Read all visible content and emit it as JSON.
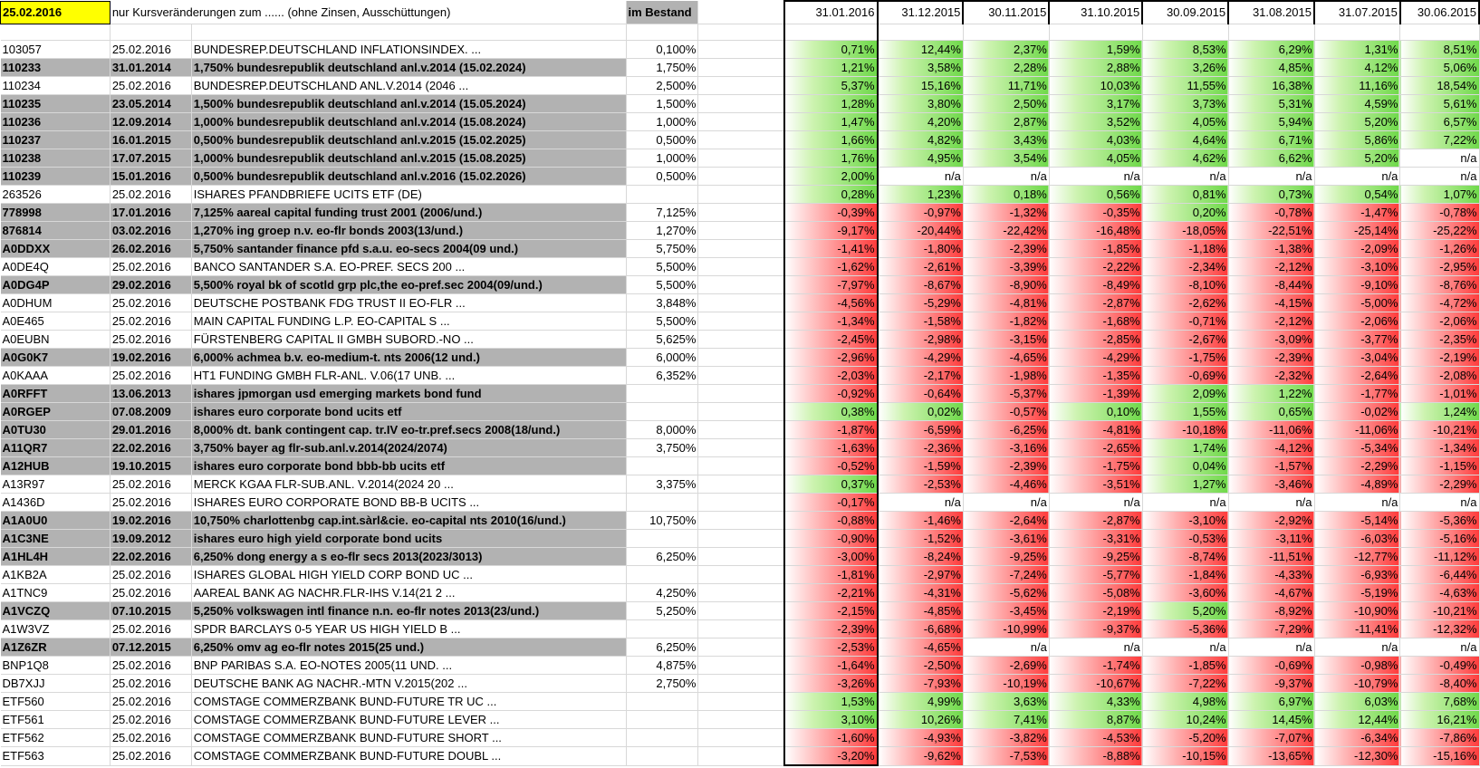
{
  "header": {
    "date": "25.02.2016",
    "note": "nur Kursveränderungen zum ......   (ohne Zinsen, Ausschüttungen)",
    "in_stock": "im Bestand",
    "periods": [
      "31.01.2016",
      "31.12.2015",
      "30.11.2015",
      "31.10.2015",
      "30.09.2015",
      "31.08.2015",
      "31.07.2015",
      "30.06.2015"
    ]
  },
  "colors": {
    "gray_row": "#b2b2b2",
    "positive": "#6fd94a",
    "negative": "#ff3b3b",
    "highlight": "#ffff00"
  },
  "rows": [
    {
      "wkn": "103057",
      "date": "25.02.2016",
      "name": "BUNDESREP.DEUTSCHLAND INFLATIONSINDEX. ...",
      "coupon": "0,100%",
      "style": "plain",
      "vals": [
        "0,71%",
        "12,44%",
        "2,37%",
        "1,59%",
        "8,53%",
        "6,29%",
        "1,31%",
        "8,51%"
      ]
    },
    {
      "wkn": "110233",
      "date": "31.01.2014",
      "name": "1,750% bundesrepublik deutschland anl.v.2014 (15.02.2024)",
      "coupon": "1,750%",
      "style": "bold",
      "vals": [
        "1,21%",
        "3,58%",
        "2,28%",
        "2,88%",
        "3,26%",
        "4,85%",
        "4,12%",
        "5,06%"
      ]
    },
    {
      "wkn": "110234",
      "date": "25.02.2016",
      "name": "BUNDESREP.DEUTSCHLAND ANL.V.2014 (2046 ...",
      "coupon": "2,500%",
      "style": "plain",
      "vals": [
        "5,37%",
        "15,16%",
        "11,71%",
        "10,03%",
        "11,55%",
        "16,38%",
        "11,16%",
        "18,54%"
      ]
    },
    {
      "wkn": "110235",
      "date": "23.05.2014",
      "name": "1,500% bundesrepublik deutschland anl.v.2014 (15.05.2024)",
      "coupon": "1,500%",
      "style": "bold",
      "vals": [
        "1,28%",
        "3,80%",
        "2,50%",
        "3,17%",
        "3,73%",
        "5,31%",
        "4,59%",
        "5,61%"
      ]
    },
    {
      "wkn": "110236",
      "date": "12.09.2014",
      "name": "1,000% bundesrepublik deutschland anl.v.2014 (15.08.2024)",
      "coupon": "1,000%",
      "style": "bold",
      "vals": [
        "1,47%",
        "4,20%",
        "2,87%",
        "3,52%",
        "4,05%",
        "5,94%",
        "5,20%",
        "6,57%"
      ]
    },
    {
      "wkn": "110237",
      "date": "16.01.2015",
      "name": "0,500% bundesrepublik deutschland anl.v.2015 (15.02.2025)",
      "coupon": "0,500%",
      "style": "bold",
      "vals": [
        "1,66%",
        "4,82%",
        "3,43%",
        "4,03%",
        "4,64%",
        "6,71%",
        "5,86%",
        "7,22%"
      ]
    },
    {
      "wkn": "110238",
      "date": "17.07.2015",
      "name": "1,000% bundesrepublik deutschland anl.v.2015 (15.08.2025)",
      "coupon": "1,000%",
      "style": "bold",
      "vals": [
        "1,76%",
        "4,95%",
        "3,54%",
        "4,05%",
        "4,62%",
        "6,62%",
        "5,20%",
        "n/a"
      ]
    },
    {
      "wkn": "110239",
      "date": "15.01.2016",
      "name": "0,500% bundesrepublik deutschland anl.v.2016 (15.02.2026)",
      "coupon": "0,500%",
      "style": "bold",
      "vals": [
        "2,00%",
        "n/a",
        "n/a",
        "n/a",
        "n/a",
        "n/a",
        "n/a",
        "n/a"
      ]
    },
    {
      "wkn": "263526",
      "date": "25.02.2016",
      "name": "ISHARES PFANDBRIEFE UCITS ETF (DE)",
      "coupon": "",
      "style": "plain",
      "vals": [
        "0,28%",
        "1,23%",
        "0,18%",
        "0,56%",
        "0,81%",
        "0,73%",
        "0,54%",
        "1,07%"
      ]
    },
    {
      "wkn": "778998",
      "date": "17.01.2016",
      "name": "7,125% aareal capital funding trust 2001 (2006/und.)",
      "coupon": "7,125%",
      "style": "bold",
      "vals": [
        "-0,39%",
        "-0,97%",
        "-1,32%",
        "-0,35%",
        "0,20%",
        "-0,78%",
        "-1,47%",
        "-0,78%"
      ]
    },
    {
      "wkn": "876814",
      "date": "03.02.2016",
      "name": "1,270% ing groep n.v. eo-flr bonds 2003(13/und.)",
      "coupon": "1,270%",
      "style": "bold",
      "vals": [
        "-9,17%",
        "-20,44%",
        "-22,42%",
        "-16,48%",
        "-18,05%",
        "-22,51%",
        "-25,14%",
        "-25,22%"
      ]
    },
    {
      "wkn": "A0DDXX",
      "date": "26.02.2016",
      "name": "5,750% santander finance pfd s.a.u. eo-secs 2004(09 und.)",
      "coupon": "5,750%",
      "style": "bold",
      "vals": [
        "-1,41%",
        "-1,80%",
        "-2,39%",
        "-1,85%",
        "-1,18%",
        "-1,38%",
        "-2,09%",
        "-1,26%"
      ]
    },
    {
      "wkn": "A0DE4Q",
      "date": "25.02.2016",
      "name": "BANCO SANTANDER S.A. EO-PREF. SECS 200 ...",
      "coupon": "5,500%",
      "style": "plain",
      "vals": [
        "-1,62%",
        "-2,61%",
        "-3,39%",
        "-2,22%",
        "-2,34%",
        "-2,12%",
        "-3,10%",
        "-2,95%"
      ]
    },
    {
      "wkn": "A0DG4P",
      "date": "29.02.2016",
      "name": "5,500% royal bk of scotld grp plc,the eo-pref.sec 2004(09/und.)",
      "coupon": "5,500%",
      "style": "bold",
      "vals": [
        "-7,97%",
        "-8,67%",
        "-8,90%",
        "-8,49%",
        "-8,10%",
        "-8,44%",
        "-9,10%",
        "-8,76%"
      ]
    },
    {
      "wkn": "A0DHUM",
      "date": "25.02.2016",
      "name": "DEUTSCHE POSTBANK FDG TRUST II EO-FLR ...",
      "coupon": "3,848%",
      "style": "plain",
      "vals": [
        "-4,56%",
        "-5,29%",
        "-4,81%",
        "-2,87%",
        "-2,62%",
        "-4,15%",
        "-5,00%",
        "-4,72%"
      ]
    },
    {
      "wkn": "A0E465",
      "date": "25.02.2016",
      "name": "MAIN CAPITAL FUNDING L.P. EO-CAPITAL S ...",
      "coupon": "5,500%",
      "style": "plain",
      "vals": [
        "-1,34%",
        "-1,58%",
        "-1,82%",
        "-1,68%",
        "-0,71%",
        "-2,12%",
        "-2,06%",
        "-2,06%"
      ]
    },
    {
      "wkn": "A0EUBN",
      "date": "25.02.2016",
      "name": "FÜRSTENBERG CAPITAL II GMBH SUBORD.-NO ...",
      "coupon": "5,625%",
      "style": "plain",
      "vals": [
        "-2,45%",
        "-2,98%",
        "-3,15%",
        "-2,85%",
        "-2,67%",
        "-3,09%",
        "-3,77%",
        "-2,35%"
      ]
    },
    {
      "wkn": "A0G0K7",
      "date": "19.02.2016",
      "name": "6,000% achmea b.v. eo-medium-t. nts 2006(12 und.)",
      "coupon": "6,000%",
      "style": "bold",
      "vals": [
        "-2,96%",
        "-4,29%",
        "-4,65%",
        "-4,29%",
        "-1,75%",
        "-2,39%",
        "-3,04%",
        "-2,19%"
      ]
    },
    {
      "wkn": "A0KAAA",
      "date": "25.02.2016",
      "name": "HT1 FUNDING GMBH FLR-ANL. V.06(17 UNB. ...",
      "coupon": "6,352%",
      "style": "plain",
      "vals": [
        "-2,03%",
        "-2,17%",
        "-1,98%",
        "-1,35%",
        "-0,69%",
        "-2,32%",
        "-2,64%",
        "-2,08%"
      ]
    },
    {
      "wkn": "A0RFFT",
      "date": "13.06.2013",
      "name": "ishares jpmorgan usd emerging markets bond fund",
      "coupon": "",
      "style": "bold",
      "vals": [
        "-0,92%",
        "-0,64%",
        "-5,37%",
        "-1,39%",
        "2,09%",
        "1,22%",
        "-1,77%",
        "-1,01%"
      ]
    },
    {
      "wkn": "A0RGEP",
      "date": "07.08.2009",
      "name": "ishares euro corporate bond ucits etf",
      "coupon": "",
      "style": "bold",
      "vals": [
        "0,38%",
        "0,02%",
        "-0,57%",
        "0,10%",
        "1,55%",
        "0,65%",
        "-0,02%",
        "1,24%"
      ]
    },
    {
      "wkn": "A0TU30",
      "date": "29.01.2016",
      "name": "8,000% dt. bank contingent cap. tr.IV eo-tr.pref.secs 2008(18/und.)",
      "coupon": "8,000%",
      "style": "bold",
      "vals": [
        "-1,87%",
        "-6,59%",
        "-6,25%",
        "-4,81%",
        "-10,18%",
        "-11,06%",
        "-11,06%",
        "-10,21%"
      ]
    },
    {
      "wkn": "A11QR7",
      "date": "22.02.2016",
      "name": "3,750% bayer ag flr-sub.anl.v.2014(2024/2074)",
      "coupon": "3,750%",
      "style": "bold",
      "vals": [
        "-1,63%",
        "-2,36%",
        "-3,16%",
        "-2,65%",
        "1,74%",
        "-4,12%",
        "-5,34%",
        "-1,34%"
      ]
    },
    {
      "wkn": "A12HUB",
      "date": "19.10.2015",
      "name": "ishares euro corporate bond bbb-bb ucits etf",
      "coupon": "",
      "style": "bold",
      "vals": [
        "-0,52%",
        "-1,59%",
        "-2,39%",
        "-1,75%",
        "0,04%",
        "-1,57%",
        "-2,29%",
        "-1,15%"
      ]
    },
    {
      "wkn": "A13R97",
      "date": "25.02.2016",
      "name": "MERCK KGAA FLR-SUB.ANL. V.2014(2024 20 ...",
      "coupon": "3,375%",
      "style": "plain",
      "vals": [
        "0,37%",
        "-2,53%",
        "-4,46%",
        "-3,51%",
        "1,27%",
        "-3,46%",
        "-4,89%",
        "-2,29%"
      ]
    },
    {
      "wkn": "A1436D",
      "date": "25.02.2016",
      "name": "ISHARES EURO CORPORATE BOND BB-B UCITS ...",
      "coupon": "",
      "style": "plain",
      "vals": [
        "-0,17%",
        "n/a",
        "n/a",
        "n/a",
        "n/a",
        "n/a",
        "n/a",
        "n/a"
      ]
    },
    {
      "wkn": "A1A0U0",
      "date": "19.02.2016",
      "name": "10,750% charlottenbg cap.int.sàrl&cie. eo-capital nts 2010(16/und.)",
      "coupon": "10,750%",
      "style": "bold",
      "vals": [
        "-0,88%",
        "-1,46%",
        "-2,64%",
        "-2,87%",
        "-3,10%",
        "-2,92%",
        "-5,14%",
        "-5,36%"
      ]
    },
    {
      "wkn": "A1C3NE",
      "date": "19.09.2012",
      "name": "ishares euro high yield corporate bond ucits",
      "coupon": "",
      "style": "bold",
      "vals": [
        "-0,90%",
        "-1,52%",
        "-3,61%",
        "-3,31%",
        "-0,53%",
        "-3,11%",
        "-6,03%",
        "-5,16%"
      ]
    },
    {
      "wkn": "A1HL4H",
      "date": "22.02.2016",
      "name": "6,250% dong energy a s eo-flr secs 2013(2023/3013)",
      "coupon": "6,250%",
      "style": "bold",
      "vals": [
        "-3,00%",
        "-8,24%",
        "-9,25%",
        "-9,25%",
        "-8,74%",
        "-11,51%",
        "-12,77%",
        "-11,12%"
      ]
    },
    {
      "wkn": "A1KB2A",
      "date": "25.02.2016",
      "name": "ISHARES GLOBAL HIGH YIELD CORP BOND UC ...",
      "coupon": "",
      "style": "plain",
      "vals": [
        "-1,81%",
        "-2,97%",
        "-7,24%",
        "-5,77%",
        "-1,84%",
        "-4,33%",
        "-6,93%",
        "-6,44%"
      ]
    },
    {
      "wkn": "A1TNC9",
      "date": "25.02.2016",
      "name": "AAREAL BANK AG NACHR.FLR-IHS V.14(21 2 ...",
      "coupon": "4,250%",
      "style": "plain",
      "vals": [
        "-2,21%",
        "-4,31%",
        "-5,62%",
        "-5,08%",
        "-3,60%",
        "-4,67%",
        "-5,19%",
        "-4,63%"
      ]
    },
    {
      "wkn": "A1VCZQ",
      "date": "07.10.2015",
      "name": "5,250% volkswagen intl finance n.n. eo-flr notes 2013(23/und.)",
      "coupon": "5,250%",
      "style": "bold",
      "vals": [
        "-2,15%",
        "-4,85%",
        "-3,45%",
        "-2,19%",
        "5,20%",
        "-8,92%",
        "-10,90%",
        "-10,21%"
      ]
    },
    {
      "wkn": "A1W3VZ",
      "date": "25.02.2016",
      "name": "SPDR BARCLAYS 0-5 YEAR US HIGH YIELD B ...",
      "coupon": "",
      "style": "plain",
      "vals": [
        "-2,39%",
        "-6,68%",
        "-10,99%",
        "-9,37%",
        "-5,36%",
        "-7,29%",
        "-11,41%",
        "-12,32%"
      ]
    },
    {
      "wkn": "A1Z6ZR",
      "date": "07.12.2015",
      "name": "6,250% omv ag eo-flr notes 2015(25 und.)",
      "coupon": "6,250%",
      "style": "bold",
      "vals": [
        "-2,53%",
        "-4,65%",
        "n/a",
        "n/a",
        "n/a",
        "n/a",
        "n/a",
        "n/a"
      ]
    },
    {
      "wkn": "BNP1Q8",
      "date": "25.02.2016",
      "name": "BNP PARIBAS S.A. EO-NOTES 2005(11 UND. ...",
      "coupon": "4,875%",
      "style": "plain",
      "vals": [
        "-1,64%",
        "-2,50%",
        "-2,69%",
        "-1,74%",
        "-1,85%",
        "-0,69%",
        "-0,98%",
        "-0,49%"
      ]
    },
    {
      "wkn": "DB7XJJ",
      "date": "25.02.2016",
      "name": "DEUTSCHE BANK AG NACHR.-MTN V.2015(202 ...",
      "coupon": "2,750%",
      "style": "plain",
      "vals": [
        "-3,26%",
        "-7,93%",
        "-10,19%",
        "-10,67%",
        "-7,22%",
        "-9,37%",
        "-10,79%",
        "-8,40%"
      ]
    },
    {
      "wkn": "ETF560",
      "date": "25.02.2016",
      "name": "COMSTAGE COMMERZBANK BUND-FUTURE TR UC ...",
      "coupon": "",
      "style": "plain",
      "vals": [
        "1,53%",
        "4,99%",
        "3,63%",
        "4,33%",
        "4,98%",
        "6,97%",
        "6,03%",
        "7,68%"
      ]
    },
    {
      "wkn": "ETF561",
      "date": "25.02.2016",
      "name": "COMSTAGE COMMERZBANK BUND-FUTURE LEVER ...",
      "coupon": "",
      "style": "plain",
      "vals": [
        "3,10%",
        "10,26%",
        "7,41%",
        "8,87%",
        "10,24%",
        "14,45%",
        "12,44%",
        "16,21%"
      ]
    },
    {
      "wkn": "ETF562",
      "date": "25.02.2016",
      "name": "COMSTAGE COMMERZBANK BUND-FUTURE SHORT ...",
      "coupon": "",
      "style": "plain",
      "vals": [
        "-1,60%",
        "-4,93%",
        "-3,82%",
        "-4,53%",
        "-5,20%",
        "-7,07%",
        "-6,34%",
        "-7,86%"
      ]
    },
    {
      "wkn": "ETF563",
      "date": "25.02.2016",
      "name": "COMSTAGE COMMERZBANK BUND-FUTURE DOUBL ...",
      "coupon": "",
      "style": "plain",
      "vals": [
        "-3,20%",
        "-9,62%",
        "-7,53%",
        "-8,88%",
        "-10,15%",
        "-13,65%",
        "-12,30%",
        "-15,16%"
      ]
    }
  ]
}
